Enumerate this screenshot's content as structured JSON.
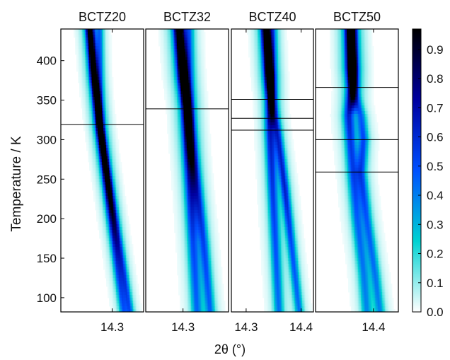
{
  "chart_data": {
    "type": "heatmap",
    "panels": [
      {
        "title": "BCTZ20",
        "x_tick_labels": [
          "14.3"
        ],
        "transition_temperatures": [
          319
        ],
        "peaks": [
          {
            "temps": [
              440,
              380,
              319,
              250,
              160,
              80
            ],
            "pos": [
              0.35,
              0.4,
              0.47,
              0.55,
              0.66,
              0.76
            ],
            "width": 0.035,
            "intensity": [
              0.95,
              0.95,
              0.9,
              0.65,
              0.45,
              0.35
            ]
          },
          {
            "temps": [
              319,
              250,
              160,
              80
            ],
            "pos": [
              0.47,
              0.58,
              0.72,
              0.84
            ],
            "width": 0.03,
            "intensity": [
              0.3,
              0.4,
              0.38,
              0.35
            ]
          }
        ]
      },
      {
        "title": "BCTZ32",
        "x_tick_labels": [
          "14.3"
        ],
        "transition_temperatures": [
          339
        ],
        "peaks": [
          {
            "temps": [
              440,
              380,
              339,
              260,
              170,
              80
            ],
            "pos": [
              0.4,
              0.45,
              0.5,
              0.53,
              0.57,
              0.62
            ],
            "width": 0.045,
            "intensity": [
              0.95,
              1.0,
              0.9,
              0.55,
              0.4,
              0.35
            ]
          },
          {
            "temps": [
              339,
              260,
              170,
              80
            ],
            "pos": [
              0.52,
              0.6,
              0.7,
              0.78
            ],
            "width": 0.04,
            "intensity": [
              0.3,
              0.45,
              0.4,
              0.35
            ]
          }
        ]
      },
      {
        "title": "BCTZ40",
        "x_tick_labels": [
          "14.3",
          "14.4"
        ],
        "transition_temperatures": [
          351,
          327,
          312
        ],
        "peaks": [
          {
            "temps": [
              440,
              380,
              351,
              312,
              240,
              160,
              80
            ],
            "pos": [
              0.42,
              0.46,
              0.48,
              0.47,
              0.5,
              0.54,
              0.58
            ],
            "width": 0.04,
            "intensity": [
              0.95,
              1.0,
              0.75,
              0.5,
              0.45,
              0.4,
              0.35
            ]
          },
          {
            "temps": [
              351,
              312,
              240,
              160,
              80
            ],
            "pos": [
              0.5,
              0.56,
              0.65,
              0.74,
              0.83
            ],
            "width": 0.035,
            "intensity": [
              0.3,
              0.45,
              0.5,
              0.4,
              0.35
            ]
          }
        ]
      },
      {
        "title": "BCTZ50",
        "x_tick_labels": [
          "14.4"
        ],
        "transition_temperatures": [
          366,
          300,
          259
        ],
        "peaks": [
          {
            "temps": [
              440,
              390,
              366,
              330,
              300,
              259,
              200,
              130,
              80
            ],
            "pos": [
              0.42,
              0.44,
              0.45,
              0.4,
              0.42,
              0.45,
              0.5,
              0.58,
              0.62
            ],
            "width": 0.045,
            "intensity": [
              0.9,
              1.0,
              0.75,
              0.5,
              0.45,
              0.4,
              0.35,
              0.32,
              0.3
            ]
          },
          {
            "temps": [
              366,
              330,
              300,
              259,
              200,
              130,
              80
            ],
            "pos": [
              0.45,
              0.55,
              0.58,
              0.55,
              0.62,
              0.72,
              0.78
            ],
            "width": 0.04,
            "intensity": [
              0.3,
              0.35,
              0.4,
              0.4,
              0.35,
              0.32,
              0.3
            ]
          }
        ]
      }
    ],
    "y_axis": {
      "label": "Temperature / K",
      "range": [
        82,
        440
      ],
      "ticks": [
        100,
        150,
        200,
        250,
        300,
        350,
        400
      ]
    },
    "x_axis": {
      "label": "2θ (°)"
    },
    "colorbar": {
      "range": [
        0.0,
        0.97
      ],
      "ticks": [
        0.0,
        0.1,
        0.2,
        0.3,
        0.4,
        0.5,
        0.6,
        0.7,
        0.8,
        0.9
      ],
      "tick_labels": [
        "0.0",
        "0.1",
        "0.2",
        "0.3",
        "0.4",
        "0.5",
        "0.6",
        "0.7",
        "0.8",
        "0.9"
      ],
      "colors": [
        "#ffffff",
        "#00d2d2",
        "#0050ff",
        "#0000a0",
        "#000000"
      ]
    }
  }
}
